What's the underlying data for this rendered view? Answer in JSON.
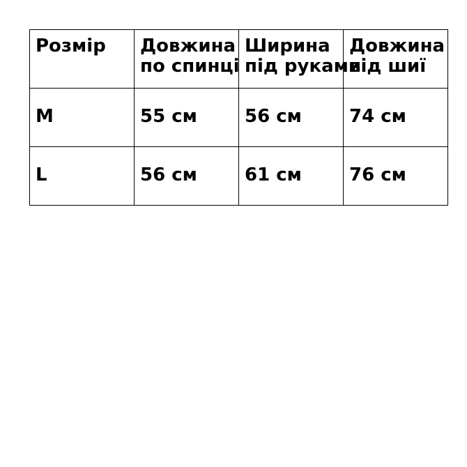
{
  "table": {
    "headers": [
      [
        "Розмір"
      ],
      [
        "Довжина",
        "по спинці"
      ],
      [
        "Ширина",
        "під руками"
      ],
      [
        "Довжина",
        "від шиї"
      ]
    ],
    "rows": [
      [
        "M",
        "55 см",
        "56 см",
        "74 см"
      ],
      [
        "L",
        "56 см",
        "61 см",
        "76 см"
      ]
    ]
  }
}
